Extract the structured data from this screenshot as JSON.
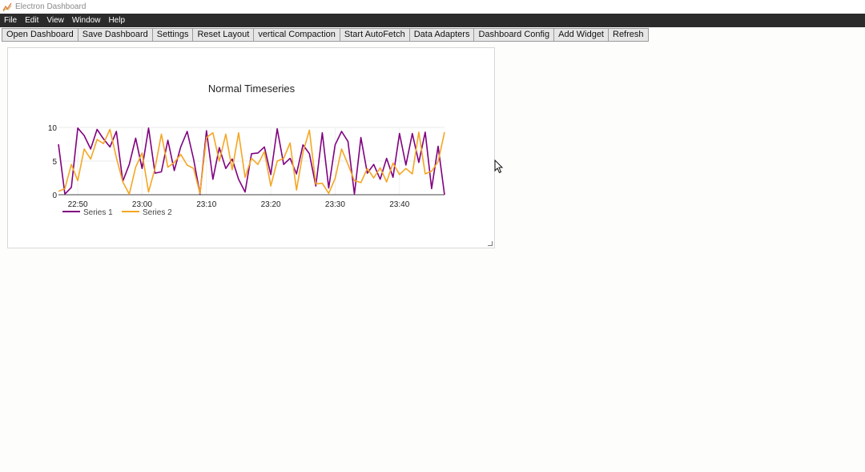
{
  "window": {
    "title": "Electron Dashboard",
    "icon": "chart-line-icon"
  },
  "menu": {
    "items": [
      "File",
      "Edit",
      "View",
      "Window",
      "Help"
    ]
  },
  "toolbar": {
    "buttons": [
      "Open Dashboard",
      "Save Dashboard",
      "Settings",
      "Reset Layout",
      "vertical Compaction",
      "Start AutoFetch",
      "Data Adapters",
      "Dashboard Config",
      "Add Widget",
      "Refresh"
    ]
  },
  "colors": {
    "menubar": "#2b2b2b",
    "series1": "#800080",
    "series2": "#f5a623",
    "button_bg": "#e6e6e6"
  },
  "chart_data": {
    "type": "line",
    "title": "Normal Timeseries",
    "x_unit": "time (HH:MM)",
    "x_start": "22:47",
    "x_step_minutes": 1,
    "x_ticks": [
      "22:50",
      "23:00",
      "23:10",
      "23:20",
      "23:30",
      "23:40"
    ],
    "ylim": [
      0,
      10
    ],
    "y_ticks": [
      0,
      5,
      10
    ],
    "grid": true,
    "legend": "bottom-left",
    "series": [
      {
        "name": "Series 1",
        "color": "#800080",
        "values": [
          7.5,
          0.1,
          1.1,
          9.9,
          8.8,
          6.8,
          9.7,
          8.3,
          7.1,
          9.4,
          2.0,
          4.5,
          8.4,
          3.9,
          9.9,
          3.2,
          3.4,
          8.1,
          3.6,
          7.1,
          9.4,
          5.3,
          0.1,
          9.5,
          2.3,
          7.0,
          3.9,
          5.3,
          2.3,
          0.4,
          6.1,
          6.2,
          7.1,
          3.0,
          9.8,
          4.5,
          5.4,
          3.1,
          7.4,
          6.1,
          1.3,
          9.2,
          1.0,
          7.4,
          9.4,
          7.9,
          0.1,
          8.5,
          3.2,
          4.5,
          2.3,
          5.4,
          2.6,
          9.1,
          4.4,
          9.1,
          4.8,
          9.3,
          0.9,
          7.2,
          0.0
        ]
      },
      {
        "name": "Series 2",
        "color": "#f5a623",
        "values": [
          0.5,
          0.9,
          4.5,
          2.1,
          6.8,
          5.3,
          8.2,
          7.6,
          9.7,
          5.5,
          1.9,
          0.1,
          4.1,
          6.2,
          0.4,
          3.9,
          9.0,
          4.1,
          4.8,
          6.0,
          4.4,
          3.9,
          0.2,
          8.5,
          9.2,
          5.0,
          9.0,
          3.7,
          9.2,
          2.6,
          5.4,
          4.5,
          6.4,
          1.3,
          5.0,
          5.4,
          7.7,
          0.7,
          6.3,
          9.6,
          1.6,
          1.7,
          0.2,
          2.4,
          6.8,
          4.5,
          2.1,
          1.8,
          3.9,
          2.5,
          4.0,
          1.9,
          4.7,
          3.0,
          3.9,
          3.1,
          9.3,
          3.1,
          3.5,
          4.9,
          9.3
        ]
      }
    ]
  }
}
